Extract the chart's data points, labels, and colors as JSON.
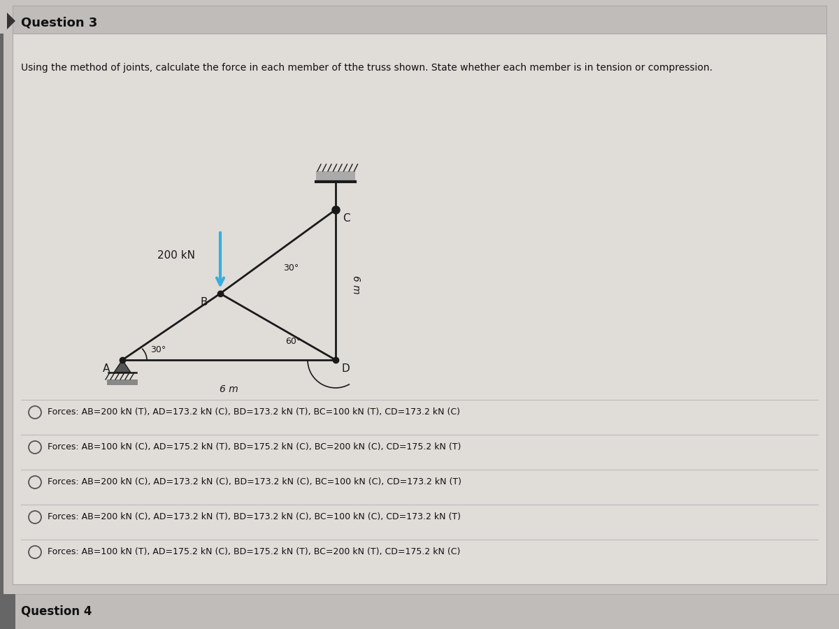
{
  "title": "Question 3",
  "question_text": "Using the method of joints, calculate the force in each member of tthe truss shown. State whether each member is in tension or compression.",
  "bg_outer": "#c8c4c2",
  "bg_content": "#d8d4d0",
  "bg_title": "#c0bcba",
  "bg_footer": "#c0bcba",
  "options": [
    "Forces: AB=200 kN (T), AD=173.2 kN (C), BD=173.2 kN (T), BC=100 kN (T), CD=173.2 kN (C)",
    "Forces: AB=100 kN (C), AD=175.2 kN (T), BD=175.2 kN (C), BC=200 kN (C), CD=175.2 kN (T)",
    "Forces: AB=200 kN (C), AD=173.2 kN (C), BD=173.2 kN (C), BC=100 kN (C), CD=173.2 kN (T)",
    "Forces: AB=200 kN (C), AD=173.2 kN (T), BD=173.2 kN (C), BC=100 kN (C), CD=173.2 kN (T)",
    "Forces: AB=100 kN (T), AD=175.2 kN (C), BD=175.2 kN (T), BC=200 kN (T), CD=175.2 kN (C)"
  ],
  "truss_color": "#1a1a1a",
  "force_arrow_color": "#3aaedc",
  "force_label": "200 kN",
  "label_6m_h": "6 m",
  "label_6m_v": "6 m",
  "question4_text": "Question 4"
}
